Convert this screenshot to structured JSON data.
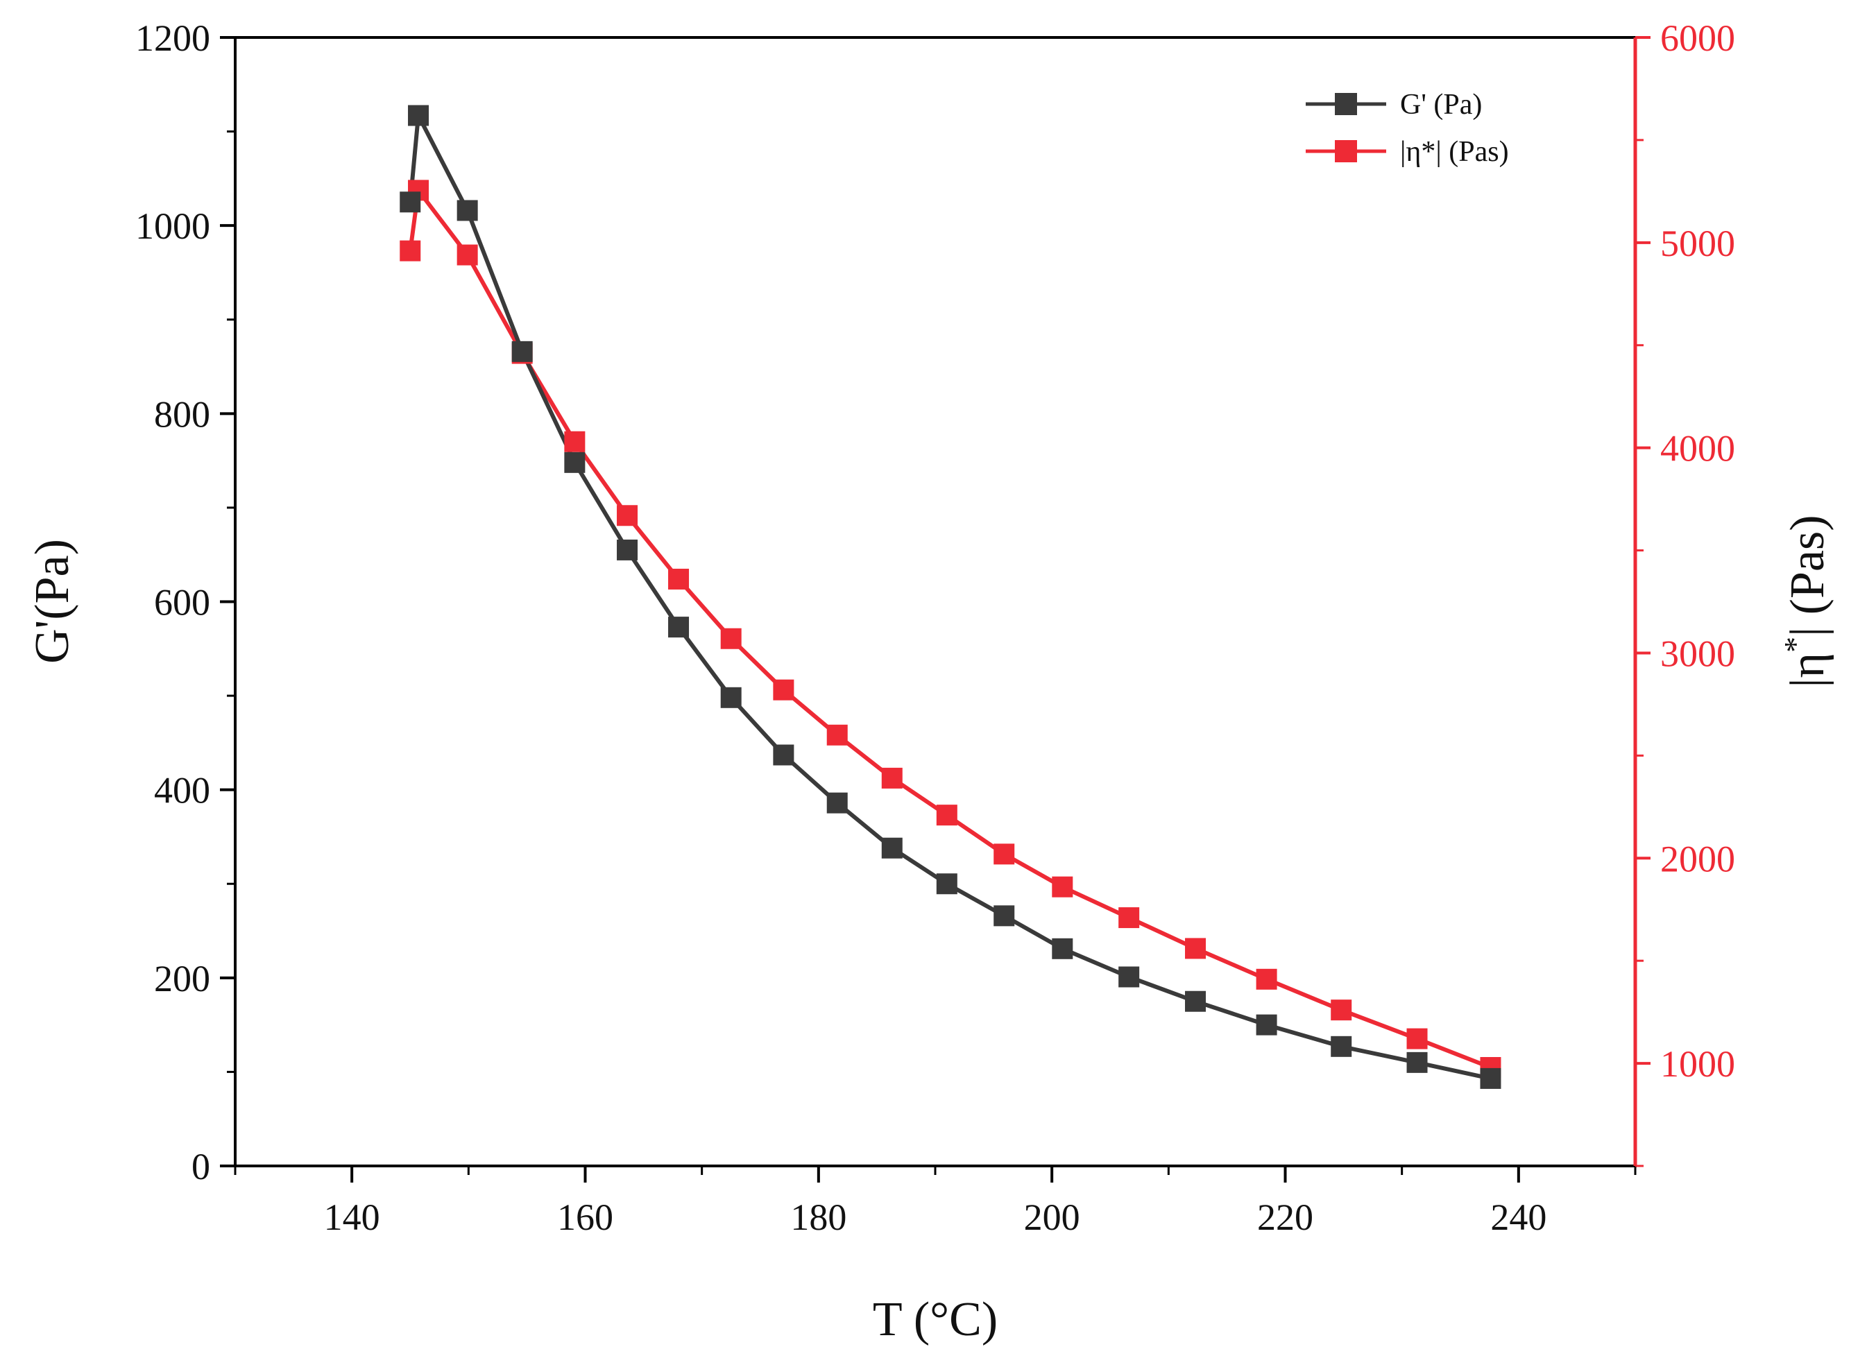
{
  "chart_data": {
    "type": "line",
    "x_axis": {
      "label": "T (°C)",
      "range": [
        130,
        250
      ],
      "ticks": [
        140,
        160,
        180,
        200,
        220,
        240
      ]
    },
    "y_left": {
      "label": "G'(Pa)",
      "range": [
        0,
        1200
      ],
      "ticks": [
        0,
        200,
        400,
        600,
        800,
        1000,
        1200
      ]
    },
    "y_right": {
      "label_base": "|η",
      "label_sup": "*",
      "label_tail": "| (Pas)",
      "range": [
        500,
        6000
      ],
      "ticks": [
        1000,
        2000,
        3000,
        4000,
        5000,
        6000
      ]
    },
    "legend_position": "top-right",
    "series": [
      {
        "name": "G' (Pa)",
        "axis": "left",
        "color": "#3a3a3a",
        "marker": "square",
        "x": [
          145.0,
          145.7,
          149.9,
          154.6,
          159.1,
          163.6,
          168.0,
          172.5,
          177.0,
          181.6,
          186.3,
          191.0,
          195.9,
          200.9,
          206.6,
          212.3,
          218.4,
          224.8,
          231.3,
          237.6
        ],
        "y": [
          1025,
          1117,
          1016,
          866,
          748,
          655,
          573,
          498,
          437,
          386,
          338,
          300,
          266,
          231,
          201,
          175,
          150,
          127,
          110,
          93
        ]
      },
      {
        "name": "|η*| (Pas)",
        "axis": "right",
        "color": "#ee2a35",
        "marker": "square",
        "x": [
          145.0,
          145.7,
          149.9,
          154.6,
          159.1,
          163.6,
          168.0,
          172.5,
          177.0,
          181.6,
          186.3,
          191.0,
          195.9,
          200.9,
          206.6,
          212.3,
          218.4,
          224.8,
          231.3,
          237.6
        ],
        "y": [
          4960,
          5255,
          4940,
          4460,
          4030,
          3670,
          3360,
          3070,
          2820,
          2600,
          2390,
          2210,
          2020,
          1860,
          1710,
          1560,
          1410,
          1260,
          1120,
          980
        ]
      }
    ]
  }
}
